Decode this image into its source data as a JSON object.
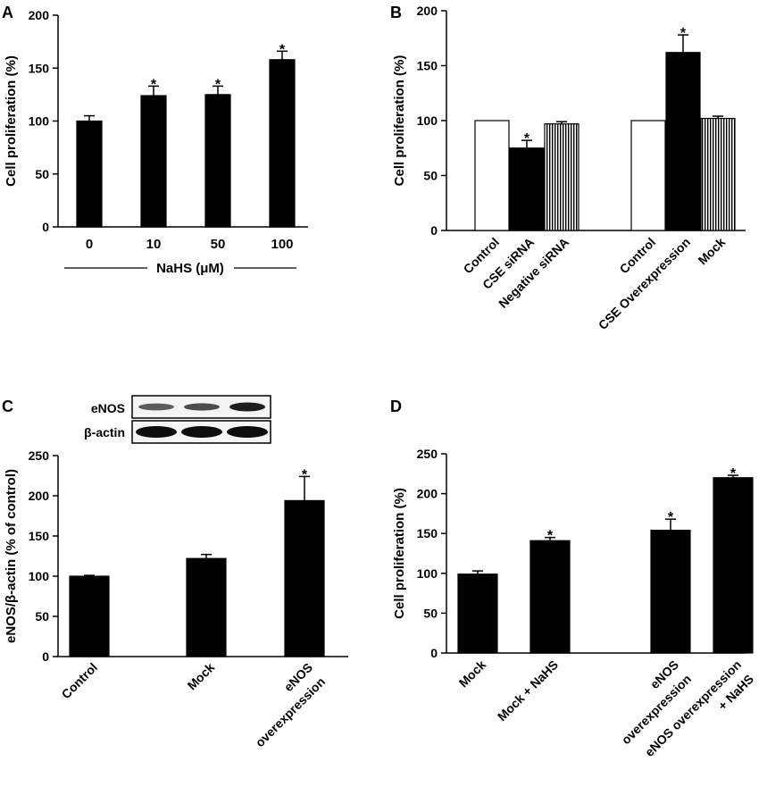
{
  "colors": {
    "solid": "#000000",
    "open": "#ffffff",
    "striped": "#7a7a7a"
  },
  "chart_data": [
    {
      "panel": "A",
      "type": "bar",
      "ylabel": "Cell proliferation (%)",
      "ylim": [
        0,
        200
      ],
      "yticks": [
        0,
        50,
        100,
        150,
        200
      ],
      "categories": [
        "0",
        "10",
        "50",
        "100"
      ],
      "group_label": "NaHS (μM)",
      "series": [
        {
          "values": [
            100,
            124,
            125,
            158
          ],
          "errors": [
            5,
            9,
            8,
            8
          ],
          "fill": "solid",
          "significant": [
            false,
            true,
            true,
            true
          ]
        }
      ]
    },
    {
      "panel": "B",
      "type": "bar",
      "ylabel": "Cell proliferation (%)",
      "ylim": [
        0,
        200
      ],
      "yticks": [
        0,
        50,
        100,
        150,
        200
      ],
      "groups": [
        {
          "bars": [
            {
              "label": "Control",
              "value": 100,
              "error": 0,
              "fill": "open",
              "significant": false
            },
            {
              "label": "CSE siRNA",
              "value": 75,
              "error": 7,
              "fill": "solid",
              "significant": true
            },
            {
              "label": "Negative siRNA",
              "value": 97,
              "error": 2,
              "fill": "striped",
              "significant": false
            }
          ]
        },
        {
          "bars": [
            {
              "label": "Control",
              "value": 100,
              "error": 0,
              "fill": "open",
              "significant": false
            },
            {
              "label": "CSE Overexpression",
              "value": 162,
              "error": 16,
              "fill": "solid",
              "significant": true
            },
            {
              "label": "Mock",
              "value": 102,
              "error": 2,
              "fill": "striped",
              "significant": false
            }
          ]
        }
      ]
    },
    {
      "panel": "C",
      "type": "bar",
      "ylabel": "eNOS/β-actin (% of control)",
      "ylim": [
        0,
        250
      ],
      "yticks": [
        0,
        50,
        100,
        150,
        200,
        250
      ],
      "categories": [
        "Control",
        "Mock",
        "eNOS overexpression"
      ],
      "category_lines": [
        [
          "Control"
        ],
        [
          "Mock"
        ],
        [
          "eNOS",
          "overexpression"
        ]
      ],
      "series": [
        {
          "values": [
            100,
            122,
            194
          ],
          "errors": [
            1,
            5,
            30
          ],
          "fill": "solid",
          "significant": [
            false,
            false,
            true
          ]
        }
      ],
      "blot": {
        "rows": [
          "eNOS",
          "β-actin"
        ],
        "enos_band_strength": [
          0.55,
          0.65,
          1.0
        ]
      }
    },
    {
      "panel": "D",
      "type": "bar",
      "ylabel": "Cell proliferation (%)",
      "ylim": [
        0,
        250
      ],
      "yticks": [
        0,
        50,
        100,
        150,
        200,
        250
      ],
      "categories": [
        "Mock",
        "Mock + NaHS",
        "eNOS overexpression",
        "eNOS overexpression + NaHS"
      ],
      "category_lines": [
        [
          "Mock"
        ],
        [
          "Mock + NaHS"
        ],
        [
          "eNOS",
          "overexpression"
        ],
        [
          "eNOS  overexpression",
          "+ NaHS"
        ]
      ],
      "series": [
        {
          "values": [
            99,
            141,
            154,
            220
          ],
          "errors": [
            4,
            4,
            14,
            3
          ],
          "fill": "solid",
          "significant": [
            false,
            true,
            true,
            true
          ]
        }
      ]
    }
  ]
}
